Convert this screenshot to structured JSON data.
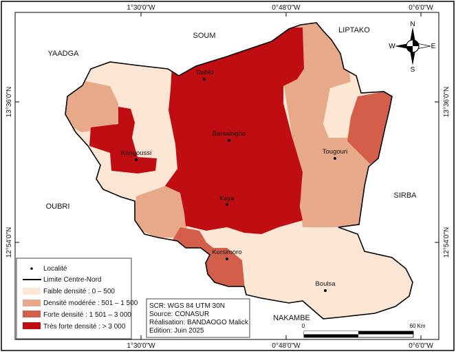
{
  "coordinates": {
    "top": [
      "1°30'0\"W",
      "0°48'0\"W",
      "0°6'0\"W"
    ],
    "bottom": [
      "1°30'0\"W",
      "0°48'0\"W",
      "0°6'0\"W"
    ],
    "left": [
      "13°36'0\"N",
      "12°54'0\"N"
    ],
    "right": [
      "13°36'0\"N",
      "12°54'0\"N"
    ]
  },
  "neighbours": [
    "YAADGA",
    "SOUM",
    "LIPTAKO",
    "SIRBA",
    "OUBRI",
    "NAKAMBE"
  ],
  "localities": [
    "Dablo",
    "Barsalogho",
    "Kongoussi",
    "Tougouri",
    "Kaya",
    "Korsimoro",
    "Boulsa"
  ],
  "compass": {
    "n": "N",
    "s": "S",
    "e": "E",
    "w": "W"
  },
  "colors": {
    "faible": "#fde6d4",
    "moderee": "#e8a98a",
    "forte": "#d35f4b",
    "tres_forte": "#c00d12"
  },
  "legend": {
    "locality": "Localité",
    "boundary": "Limite Centre-Nord",
    "classes": [
      "Faible densité : 0 – 500",
      "Densité modérée : 501 – 1 500",
      "Forte densité : 1 501 – 3 000",
      "Très forte densité : > 3 000"
    ]
  },
  "info": [
    "SCR: WGS 84 UTM 30N",
    "Source: CONASUR",
    "Réalisation: BANDAOGO Malick",
    "Edition: Juin 2025"
  ],
  "scale": {
    "start": "0",
    "end": "60 Km"
  }
}
